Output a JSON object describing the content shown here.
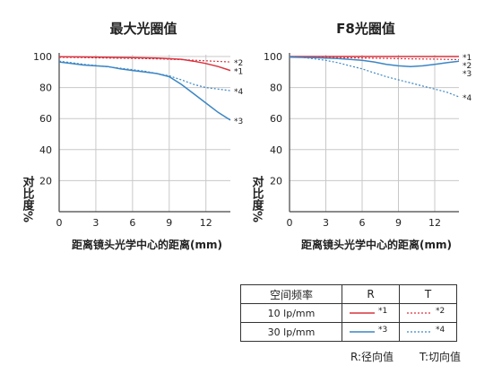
{
  "colors": {
    "red": "#d9333f",
    "blue": "#3c86c4",
    "axis": "#444444",
    "grid": "#c8c8c8"
  },
  "chart_data": [
    {
      "type": "line",
      "title": "最大光圈值",
      "xlabel": "距离镜头光学中心的距离(mm)",
      "ylabel": "对比度%",
      "xlim": [
        0,
        14
      ],
      "ylim": [
        0,
        100
      ],
      "xticks": [
        0,
        3,
        6,
        9,
        12
      ],
      "yticks": [
        20,
        40,
        60,
        80,
        100
      ],
      "grid": true,
      "series": [
        {
          "name": "*2",
          "color": "red",
          "dashed": true,
          "x": [
            0,
            2,
            4,
            6,
            8,
            10,
            12,
            14
          ],
          "y": [
            99.5,
            99.3,
            99,
            98.8,
            98.5,
            98,
            97.2,
            96.5
          ]
        },
        {
          "name": "*1",
          "color": "red",
          "dashed": false,
          "x": [
            0,
            2,
            4,
            6,
            8,
            10,
            11,
            12,
            13,
            14
          ],
          "y": [
            99.8,
            99.7,
            99.5,
            99.3,
            99,
            98.2,
            97,
            95.5,
            93.5,
            91
          ]
        },
        {
          "name": "*4",
          "color": "blue",
          "dashed": true,
          "x": [
            0,
            1,
            2,
            3,
            4,
            5,
            6,
            7,
            8,
            9,
            10,
            11,
            12,
            13,
            14
          ],
          "y": [
            97,
            96,
            95,
            94.2,
            93.3,
            92.5,
            91.5,
            90.5,
            89,
            87.5,
            85,
            82,
            80,
            79,
            78
          ]
        },
        {
          "name": "*3",
          "color": "blue",
          "dashed": false,
          "x": [
            0,
            1,
            2,
            3,
            4,
            5,
            6,
            7,
            8,
            9,
            10,
            11,
            12,
            13,
            14
          ],
          "y": [
            96.5,
            95.5,
            94.5,
            94,
            93.5,
            92,
            91,
            90,
            89,
            87,
            82,
            76,
            70,
            64,
            59
          ]
        }
      ]
    },
    {
      "type": "line",
      "title": "F8光圈值",
      "xlabel": "距离镜头光学中心的距离(mm)",
      "ylabel": "对比度%",
      "xlim": [
        0,
        14
      ],
      "ylim": [
        0,
        100
      ],
      "xticks": [
        0,
        3,
        6,
        9,
        12
      ],
      "yticks": [
        20,
        40,
        60,
        80,
        100
      ],
      "grid": true,
      "series": [
        {
          "name": "*1",
          "color": "red",
          "dashed": false,
          "x": [
            0,
            2,
            4,
            6,
            8,
            10,
            12,
            14
          ],
          "y": [
            100,
            100,
            100,
            100,
            100,
            100,
            100,
            100
          ]
        },
        {
          "name": "*2",
          "color": "red",
          "dashed": true,
          "x": [
            0,
            2,
            4,
            6,
            8,
            10,
            12,
            14
          ],
          "y": [
            99.8,
            99.6,
            99.3,
            99,
            98.8,
            98.5,
            98.3,
            98
          ]
        },
        {
          "name": "*3",
          "color": "blue",
          "dashed": false,
          "x": [
            0,
            2,
            4,
            6,
            7,
            8,
            9,
            10,
            11,
            12,
            13,
            14
          ],
          "y": [
            99.6,
            99.3,
            98.7,
            97.5,
            96.5,
            95,
            94,
            93.5,
            94,
            95,
            96,
            97
          ]
        },
        {
          "name": "*4",
          "color": "blue",
          "dashed": true,
          "x": [
            0,
            1,
            2,
            3,
            4,
            5,
            6,
            7,
            8,
            9,
            10,
            11,
            12,
            13,
            14
          ],
          "y": [
            100,
            99.5,
            98.5,
            97.5,
            96,
            94,
            92,
            89.5,
            87,
            85,
            83,
            81,
            79,
            77,
            74
          ]
        }
      ]
    }
  ],
  "legend": {
    "header": {
      "freq": "空间频率",
      "r": "R",
      "t": "T"
    },
    "rows": [
      {
        "freq": "10 lp/mm",
        "r_mark": "*1",
        "t_mark": "*2"
      },
      {
        "freq": "30 lp/mm",
        "r_mark": "*3",
        "t_mark": "*4"
      }
    ]
  },
  "notes": {
    "r": "R:径向值",
    "t": "T:切向值"
  }
}
